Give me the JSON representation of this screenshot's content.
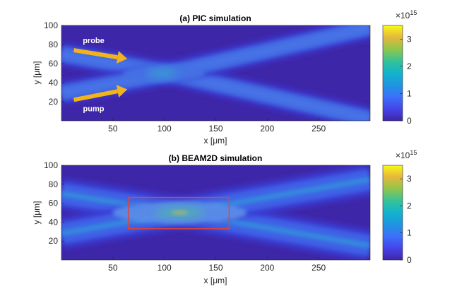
{
  "chart_data": [
    {
      "type": "heatmap",
      "title": "(a) PIC simulation",
      "xlabel": "x [μm]",
      "ylabel": "y [μm]",
      "xlim": [
        0,
        300
      ],
      "ylim": [
        0,
        100
      ],
      "xticks": [
        50,
        100,
        150,
        200,
        250
      ],
      "yticks": [
        20,
        40,
        60,
        80,
        100
      ],
      "color_scale": {
        "exponent_label": "×10",
        "exponent": "15",
        "range": [
          0,
          3.5
        ],
        "ticks": [
          0,
          1,
          2,
          3
        ]
      },
      "beams": [
        {
          "name": "probe",
          "points": [
            [
              0,
              70
            ],
            [
              100,
              51
            ],
            [
              300,
              2
            ]
          ]
        },
        {
          "name": "pump",
          "points": [
            [
              0,
              29
            ],
            [
              100,
              49
            ],
            [
              300,
              98
            ]
          ]
        }
      ],
      "interference": "fringes",
      "annotations": [
        {
          "text": "probe",
          "arrow_from": [
            12,
            74
          ],
          "arrow_to": [
            64,
            65
          ]
        },
        {
          "text": "pump",
          "arrow_from": [
            12,
            22
          ],
          "arrow_to": [
            64,
            33
          ]
        }
      ]
    },
    {
      "type": "heatmap",
      "title": "(b) BEAM2D simulation",
      "xlabel": "x [μm]",
      "ylabel": "y [μm]",
      "xlim": [
        0,
        300
      ],
      "ylim": [
        0,
        100
      ],
      "xticks": [
        50,
        100,
        150,
        200,
        250
      ],
      "yticks": [
        20,
        40,
        60,
        80,
        100
      ],
      "color_scale": {
        "exponent_label": "×10",
        "exponent": "15",
        "range": [
          0,
          3.5
        ],
        "ticks": [
          0,
          1,
          2,
          3
        ]
      },
      "beams": [
        {
          "name": "probe",
          "points": [
            [
              0,
              70
            ],
            [
              115,
              50
            ],
            [
              300,
              15
            ]
          ]
        },
        {
          "name": "pump",
          "points": [
            [
              0,
              28
            ],
            [
              115,
              50
            ],
            [
              300,
              85
            ]
          ]
        }
      ],
      "interference": "horizontal",
      "region_box": {
        "x": [
          65,
          163
        ],
        "y": [
          33,
          66
        ]
      },
      "annotations": []
    }
  ]
}
